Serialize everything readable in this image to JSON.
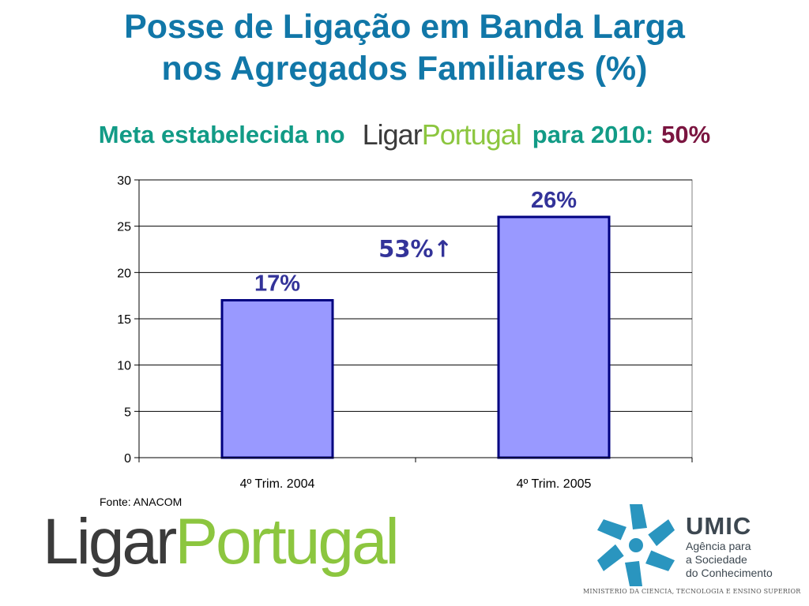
{
  "header": {
    "title_line1": "Posse de Ligação em Banda Larga",
    "title_line2": "nos Agregados Familiares (%)",
    "subtitle_prefix": "Meta estabelecida no",
    "brand_part1": "Ligar",
    "brand_part2": "Portugal",
    "subtitle_suffix": "para 2010:",
    "goal_value": "50%"
  },
  "chart_data": {
    "type": "bar",
    "categories": [
      "4º Trim. 2004",
      "4º Trim. 2005"
    ],
    "values": [
      17,
      26
    ],
    "data_labels": [
      "17%",
      "26%"
    ],
    "ylim": [
      0,
      30
    ],
    "yticks": [
      0,
      5,
      10,
      15,
      20,
      25,
      30
    ],
    "grid": true,
    "annotation": "53%↑",
    "bar_color": "#9999ff",
    "bar_border": "#000080",
    "label_color": "#333399"
  },
  "source": "Fonte: ANACOM",
  "footer": {
    "brand_part1": "Ligar",
    "brand_part2": "Portugal",
    "umic_title": "UMIC",
    "umic_line1": "Agência para",
    "umic_line2": "a Sociedade",
    "umic_line3": "do Conhecimento",
    "ministry": "MINISTÉRIO DA CIÊNCIA, TECNOLOGIA E ENSINO SUPERIOR"
  },
  "colors": {
    "title": "#1177a8",
    "subtitle": "#129b86",
    "goal": "#7b1540",
    "brand_gray": "#3b3b3b",
    "brand_green": "#8cc63f",
    "umic_blue": "#2a95bf"
  }
}
